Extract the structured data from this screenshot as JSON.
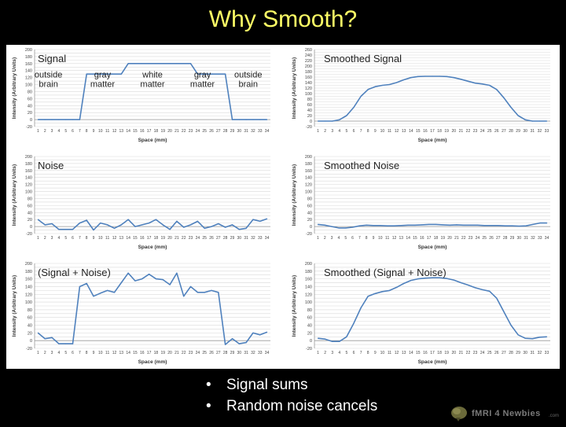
{
  "slide": {
    "title": "Why Smooth?"
  },
  "bullets": [
    "Signal sums",
    "Random noise cancels"
  ],
  "logo": {
    "text": "fMRI 4 Newbies",
    "suffix": ".com",
    "icon": "brain-icon"
  },
  "colors": {
    "background": "#000000",
    "title": "#ffff66",
    "line": "#4f81bd",
    "grid": "#d9d9d9"
  },
  "chart_data": [
    {
      "type": "line",
      "title": "Signal",
      "ylabel": "Intensity (Arbitrary Units)",
      "xlabel": "Space (mm)",
      "ylim": [
        -20,
        200
      ],
      "ytick_step": 10,
      "x": [
        1,
        2,
        3,
        4,
        5,
        6,
        7,
        8,
        9,
        10,
        11,
        12,
        13,
        14,
        15,
        16,
        17,
        18,
        19,
        20,
        21,
        22,
        23,
        24,
        25,
        26,
        27,
        28,
        29,
        30,
        31,
        32,
        33,
        34
      ],
      "values": [
        0,
        0,
        0,
        0,
        0,
        0,
        0,
        130,
        130,
        130,
        130,
        130,
        130,
        160,
        160,
        160,
        160,
        160,
        160,
        160,
        160,
        160,
        160,
        130,
        130,
        130,
        130,
        130,
        0,
        0,
        0,
        0,
        0,
        0
      ],
      "annotations": [
        {
          "text": [
            "outside",
            "brain"
          ],
          "x": 2.5,
          "y": 120
        },
        {
          "text": [
            "gray",
            "matter"
          ],
          "x": 10.3,
          "y": 120
        },
        {
          "text": [
            "white",
            "matter"
          ],
          "x": 17.5,
          "y": 120
        },
        {
          "text": [
            "gray",
            "matter"
          ],
          "x": 24.7,
          "y": 120
        },
        {
          "text": [
            "outside",
            "brain"
          ],
          "x": 31.3,
          "y": 120
        }
      ],
      "grid": true
    },
    {
      "type": "line",
      "title": "Smoothed Signal",
      "ylabel": "Intensity (Arbitrary Units)",
      "xlabel": "Space (mm)",
      "ylim": [
        -20,
        260
      ],
      "ytick_step": 10,
      "x": [
        1,
        2,
        3,
        4,
        5,
        6,
        7,
        8,
        9,
        10,
        11,
        12,
        13,
        14,
        15,
        16,
        17,
        18,
        19,
        20,
        21,
        22,
        23,
        24,
        25,
        26,
        27,
        28,
        29,
        30,
        31,
        32,
        33
      ],
      "values": [
        0,
        0,
        0,
        5,
        20,
        50,
        90,
        115,
        125,
        130,
        133,
        140,
        150,
        158,
        162,
        163,
        163,
        163,
        162,
        158,
        152,
        145,
        138,
        135,
        130,
        115,
        85,
        50,
        20,
        5,
        0,
        0,
        0
      ],
      "grid": true
    },
    {
      "type": "line",
      "title": "Noise",
      "ylabel": "Intensity (Arbitrary Units)",
      "xlabel": "Space (mm)",
      "ylim": [
        -20,
        200
      ],
      "ytick_step": 10,
      "x": [
        1,
        2,
        3,
        4,
        5,
        6,
        7,
        8,
        9,
        10,
        11,
        12,
        13,
        14,
        15,
        16,
        17,
        18,
        19,
        20,
        21,
        22,
        23,
        24,
        25,
        26,
        27,
        28,
        29,
        30,
        31,
        32,
        33,
        34
      ],
      "values": [
        20,
        5,
        8,
        -8,
        -8,
        -8,
        10,
        18,
        -10,
        10,
        5,
        -5,
        5,
        20,
        0,
        5,
        10,
        20,
        5,
        -8,
        15,
        -2,
        5,
        15,
        -5,
        0,
        8,
        -2,
        5,
        -8,
        -5,
        20,
        15,
        22
      ],
      "grid": true
    },
    {
      "type": "line",
      "title": "Smoothed Noise",
      "ylabel": "Intensity (Arbitrary Units)",
      "xlabel": "Space (mm)",
      "ylim": [
        -20,
        200
      ],
      "ytick_step": 10,
      "x": [
        1,
        2,
        3,
        4,
        5,
        6,
        7,
        8,
        9,
        10,
        11,
        12,
        13,
        14,
        15,
        16,
        17,
        18,
        19,
        20,
        21,
        22,
        23,
        24,
        25,
        26,
        27,
        28,
        29,
        30,
        31,
        32,
        33,
        34
      ],
      "values": [
        6,
        4,
        0,
        -4,
        -4,
        -2,
        2,
        4,
        3,
        3,
        2,
        2,
        3,
        4,
        4,
        5,
        6,
        6,
        5,
        4,
        5,
        4,
        4,
        4,
        3,
        3,
        3,
        2,
        2,
        1,
        2,
        6,
        10,
        10
      ],
      "grid": true
    },
    {
      "type": "line",
      "title": "(Signal + Noise)",
      "ylabel": "Intensity (Arbitrary Units)",
      "xlabel": "Space (mm)",
      "ylim": [
        -20,
        200
      ],
      "ytick_step": 10,
      "x": [
        1,
        2,
        3,
        4,
        5,
        6,
        7,
        8,
        9,
        10,
        11,
        12,
        13,
        14,
        15,
        16,
        17,
        18,
        19,
        20,
        21,
        22,
        23,
        24,
        25,
        26,
        27,
        28,
        29,
        30,
        31,
        32,
        33,
        34
      ],
      "values": [
        20,
        5,
        8,
        -8,
        -8,
        -8,
        140,
        148,
        115,
        123,
        130,
        125,
        150,
        175,
        155,
        160,
        172,
        160,
        158,
        145,
        175,
        115,
        140,
        125,
        125,
        130,
        125,
        -10,
        5,
        -8,
        -5,
        20,
        15,
        22
      ],
      "grid": true
    },
    {
      "type": "line",
      "title": "Smoothed (Signal + Noise)",
      "ylabel": "Intensity (Arbitrary Units)",
      "xlabel": "Space (mm)",
      "ylim": [
        -20,
        200
      ],
      "ytick_step": 10,
      "x": [
        1,
        2,
        3,
        4,
        5,
        6,
        7,
        8,
        9,
        10,
        11,
        12,
        13,
        14,
        15,
        16,
        17,
        18,
        19,
        20,
        21,
        22,
        23,
        24,
        25,
        26,
        27,
        28,
        29,
        30,
        31,
        32,
        33
      ],
      "values": [
        6,
        4,
        -2,
        -2,
        10,
        45,
        85,
        115,
        122,
        127,
        130,
        138,
        148,
        156,
        160,
        162,
        163,
        163,
        161,
        157,
        150,
        144,
        137,
        132,
        128,
        110,
        75,
        40,
        15,
        6,
        5,
        9,
        10
      ],
      "grid": true
    }
  ]
}
